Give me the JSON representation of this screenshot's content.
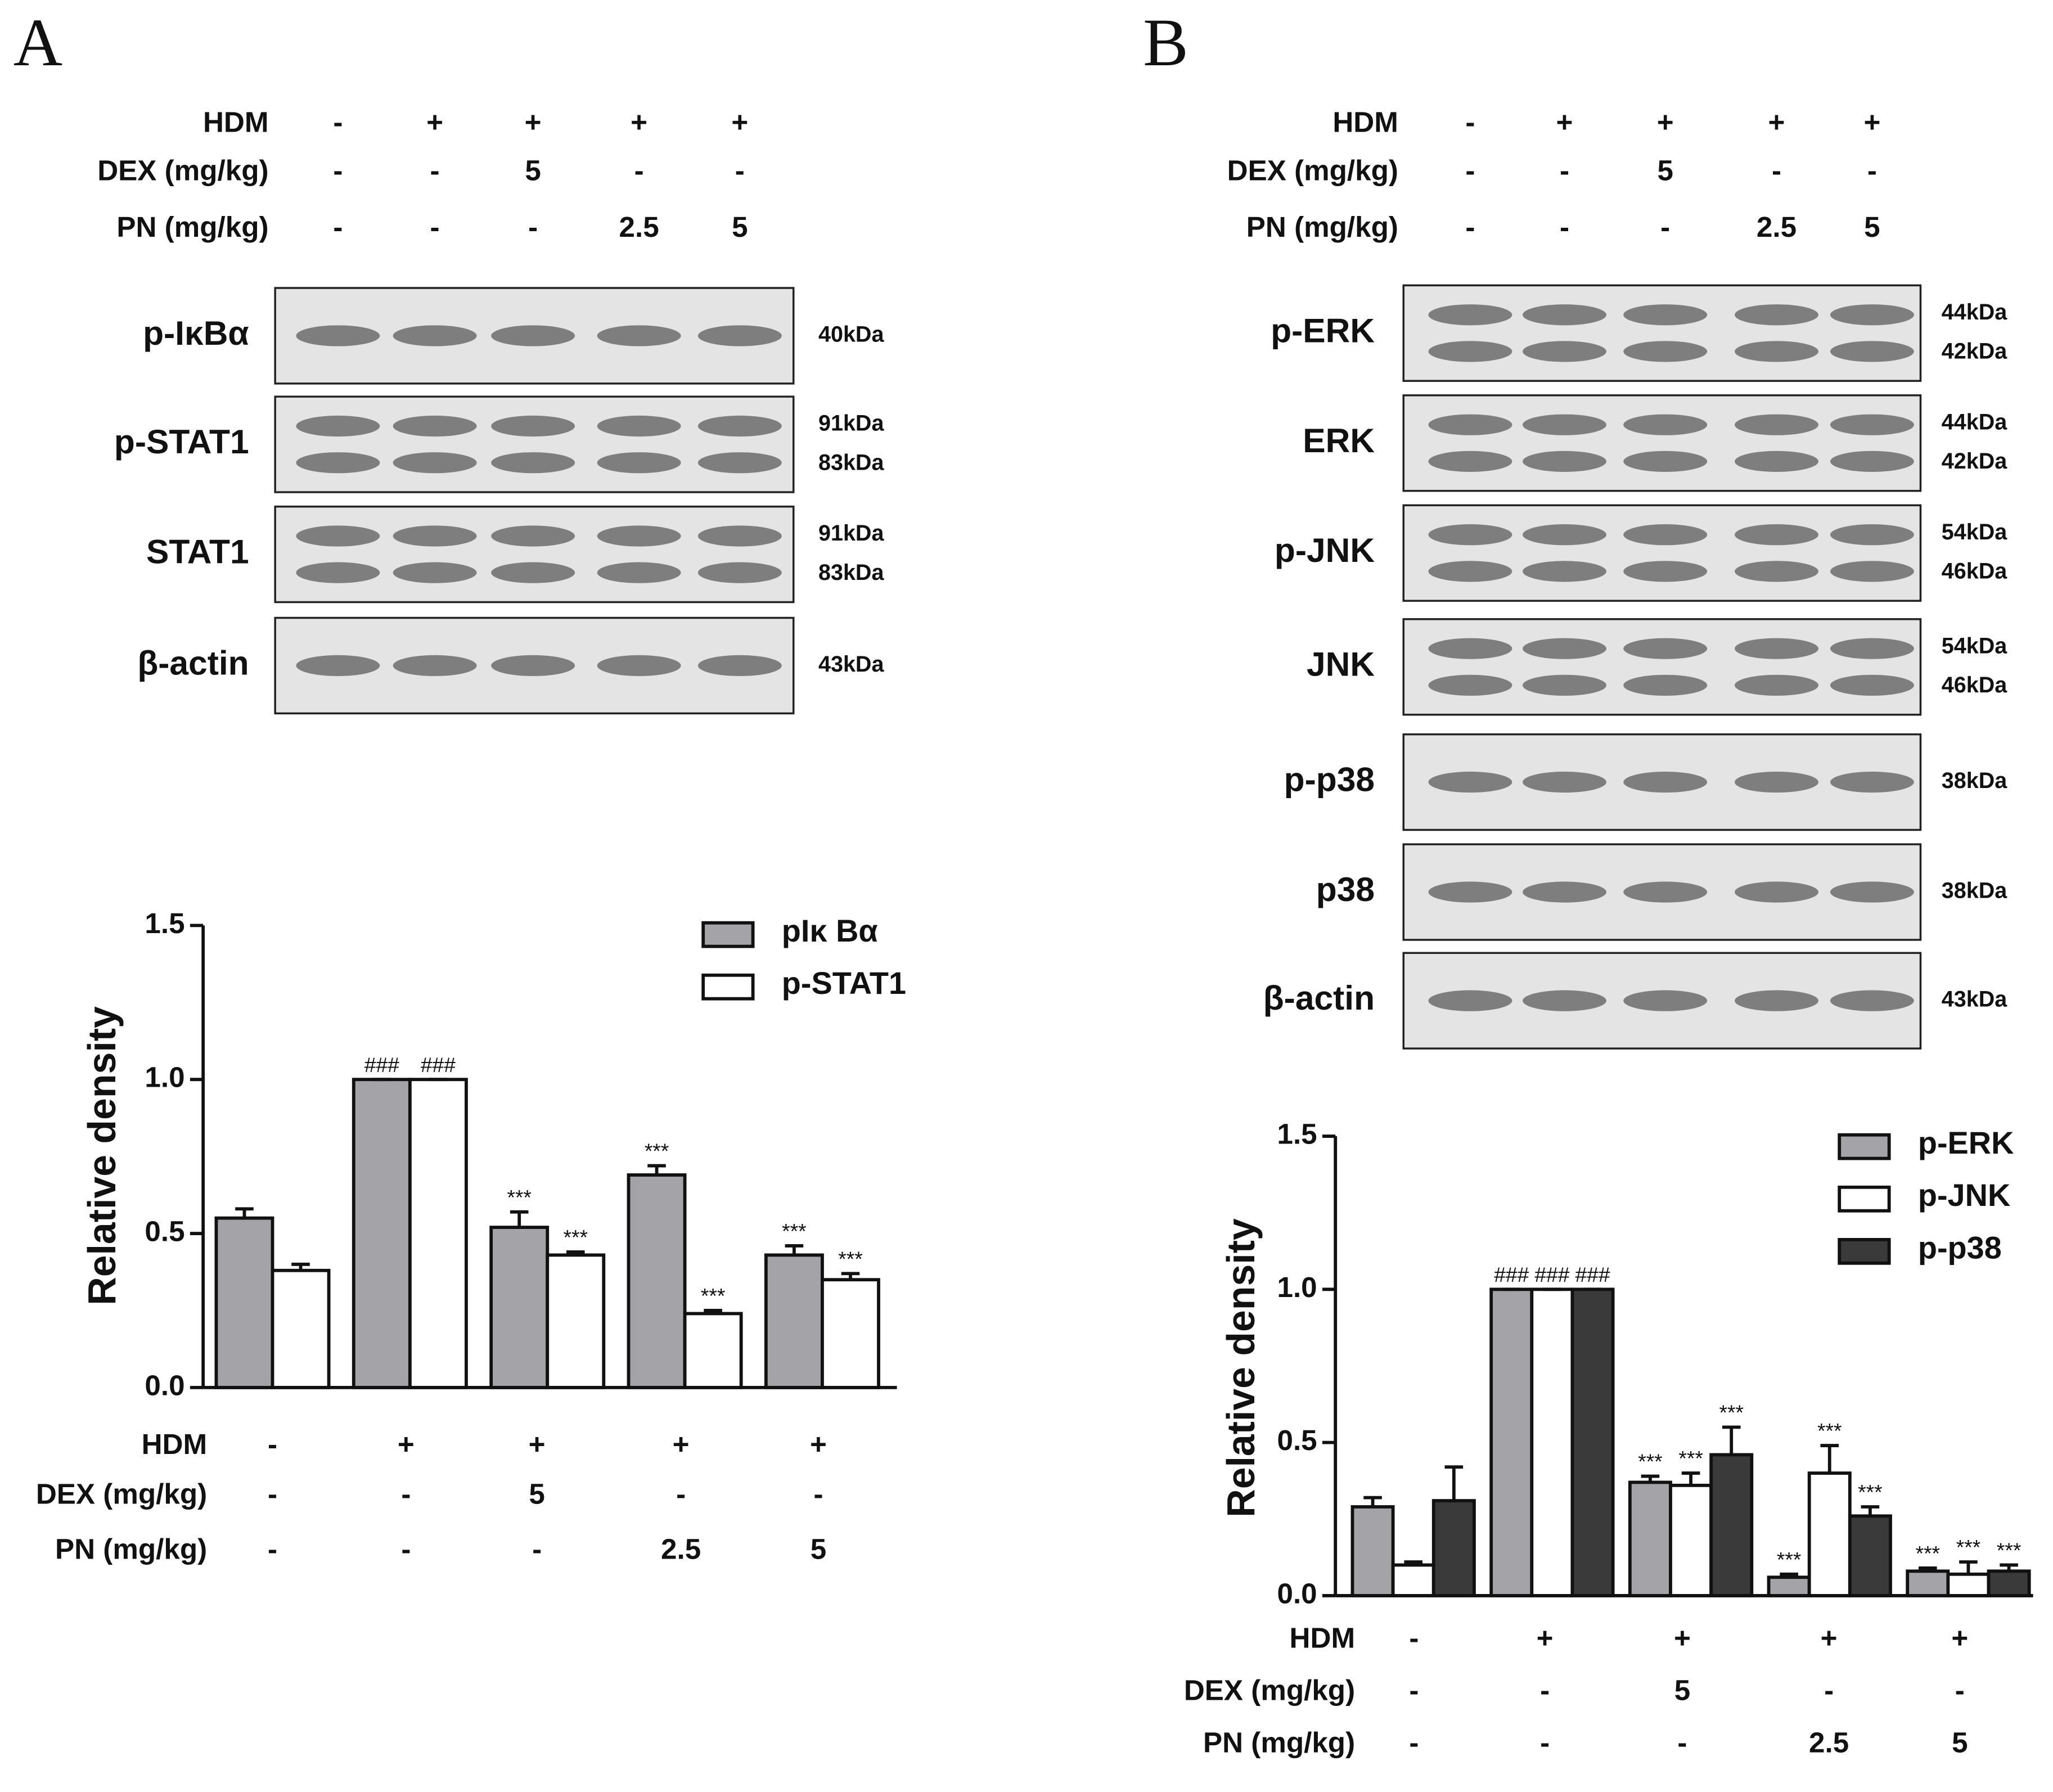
{
  "panels": [
    {
      "label": "A",
      "treatments": [
        {
          "name": "HDM",
          "values": [
            "-",
            "+",
            "+",
            "+",
            "+"
          ]
        },
        {
          "name": "DEX (mg/kg)",
          "values": [
            "-",
            "-",
            "5",
            "-",
            "-"
          ]
        },
        {
          "name": "PN (mg/kg)",
          "values": [
            "-",
            "-",
            "-",
            "2.5",
            "5"
          ]
        }
      ],
      "blots": [
        {
          "name": "p-IκBα",
          "sizes": [
            "40kDa"
          ]
        },
        {
          "name": "p-STAT1",
          "sizes": [
            "91kDa",
            "83kDa"
          ]
        },
        {
          "name": "STAT1",
          "sizes": [
            "91kDa",
            "83kDa"
          ]
        },
        {
          "name": "β-actin",
          "sizes": [
            "43kDa"
          ]
        }
      ]
    },
    {
      "label": "B",
      "treatments": [
        {
          "name": "HDM",
          "values": [
            "-",
            "+",
            "+",
            "+",
            "+"
          ]
        },
        {
          "name": "DEX (mg/kg)",
          "values": [
            "-",
            "-",
            "5",
            "-",
            "-"
          ]
        },
        {
          "name": "PN (mg/kg)",
          "values": [
            "-",
            "-",
            "-",
            "2.5",
            "5"
          ]
        }
      ],
      "blots": [
        {
          "name": "p-ERK",
          "sizes": [
            "44kDa",
            "42kDa"
          ]
        },
        {
          "name": "ERK",
          "sizes": [
            "44kDa",
            "42kDa"
          ]
        },
        {
          "name": "p-JNK",
          "sizes": [
            "54kDa",
            "46kDa"
          ]
        },
        {
          "name": "JNK",
          "sizes": [
            "54kDa",
            "46kDa"
          ]
        },
        {
          "name": "p-p38",
          "sizes": [
            "38kDa"
          ]
        },
        {
          "name": "p38",
          "sizes": [
            "38kDa"
          ]
        },
        {
          "name": "β-actin",
          "sizes": [
            "43kDa"
          ]
        }
      ]
    }
  ],
  "chart_data": [
    {
      "type": "bar",
      "ylabel": "Relative density",
      "ylim": [
        0,
        1.5
      ],
      "yticks": [
        {
          "value": 0,
          "label": "0.0"
        },
        0.5,
        {
          "value": 1,
          "label": "1.0"
        },
        1.5
      ],
      "treatments": [
        {
          "name": "HDM",
          "values": [
            "-",
            "+",
            "+",
            "+",
            "+"
          ]
        },
        {
          "name": "DEX (mg/kg)",
          "values": [
            "-",
            "-",
            "5",
            "-",
            "-"
          ]
        },
        {
          "name": "PN (mg/kg)",
          "values": [
            "-",
            "-",
            "-",
            "2.5",
            "5"
          ]
        }
      ],
      "series": [
        {
          "name": "pIκ Bα",
          "color": "#a3a3a8",
          "values": [
            0.55,
            1.0,
            0.52,
            0.69,
            0.43
          ],
          "errors": [
            0.03,
            0,
            0.05,
            0.03,
            0.03
          ],
          "labels": [
            null,
            "###",
            "***",
            "***",
            "***"
          ]
        },
        {
          "name": "p-STAT1",
          "color": "#ffffff",
          "values": [
            0.38,
            1.0,
            0.43,
            0.24,
            0.35
          ],
          "errors": [
            0.02,
            0,
            0.01,
            0.01,
            0.02
          ],
          "labels": [
            null,
            "###",
            "***",
            "***",
            "***"
          ]
        }
      ]
    },
    {
      "type": "bar",
      "ylabel": "Relative density",
      "ylim": [
        0,
        1.5
      ],
      "yticks": [
        {
          "value": 0,
          "label": "0.0"
        },
        0.5,
        {
          "value": 1,
          "label": "1.0"
        },
        1.5
      ],
      "treatments": [
        {
          "name": "HDM",
          "values": [
            "-",
            "+",
            "+",
            "+",
            "+"
          ]
        },
        {
          "name": "DEX (mg/kg)",
          "values": [
            "-",
            "-",
            "5",
            "-",
            "-"
          ]
        },
        {
          "name": "PN (mg/kg)",
          "values": [
            "-",
            "-",
            "-",
            "2.5",
            "5"
          ]
        }
      ],
      "series": [
        {
          "name": "p-ERK",
          "color": "#a3a3a8",
          "values": [
            0.29,
            1.0,
            0.37,
            0.06,
            0.08
          ],
          "errors": [
            0.03,
            0,
            0.02,
            0.01,
            0.01
          ],
          "labels": [
            null,
            "###",
            "***",
            "***",
            "***"
          ]
        },
        {
          "name": "p-JNK",
          "color": "#ffffff",
          "values": [
            0.1,
            1.0,
            0.36,
            0.4,
            0.07
          ],
          "errors": [
            0.01,
            0,
            0.04,
            0.09,
            0.04
          ],
          "labels": [
            null,
            "###",
            "***",
            "***",
            "***"
          ]
        },
        {
          "name": "p-p38",
          "color": "#3a3a3a",
          "values": [
            0.31,
            1.0,
            0.46,
            0.26,
            0.08
          ],
          "errors": [
            0.11,
            0,
            0.09,
            0.03,
            0.02
          ],
          "labels": [
            null,
            "###",
            "***",
            "***",
            "***"
          ]
        }
      ]
    }
  ]
}
